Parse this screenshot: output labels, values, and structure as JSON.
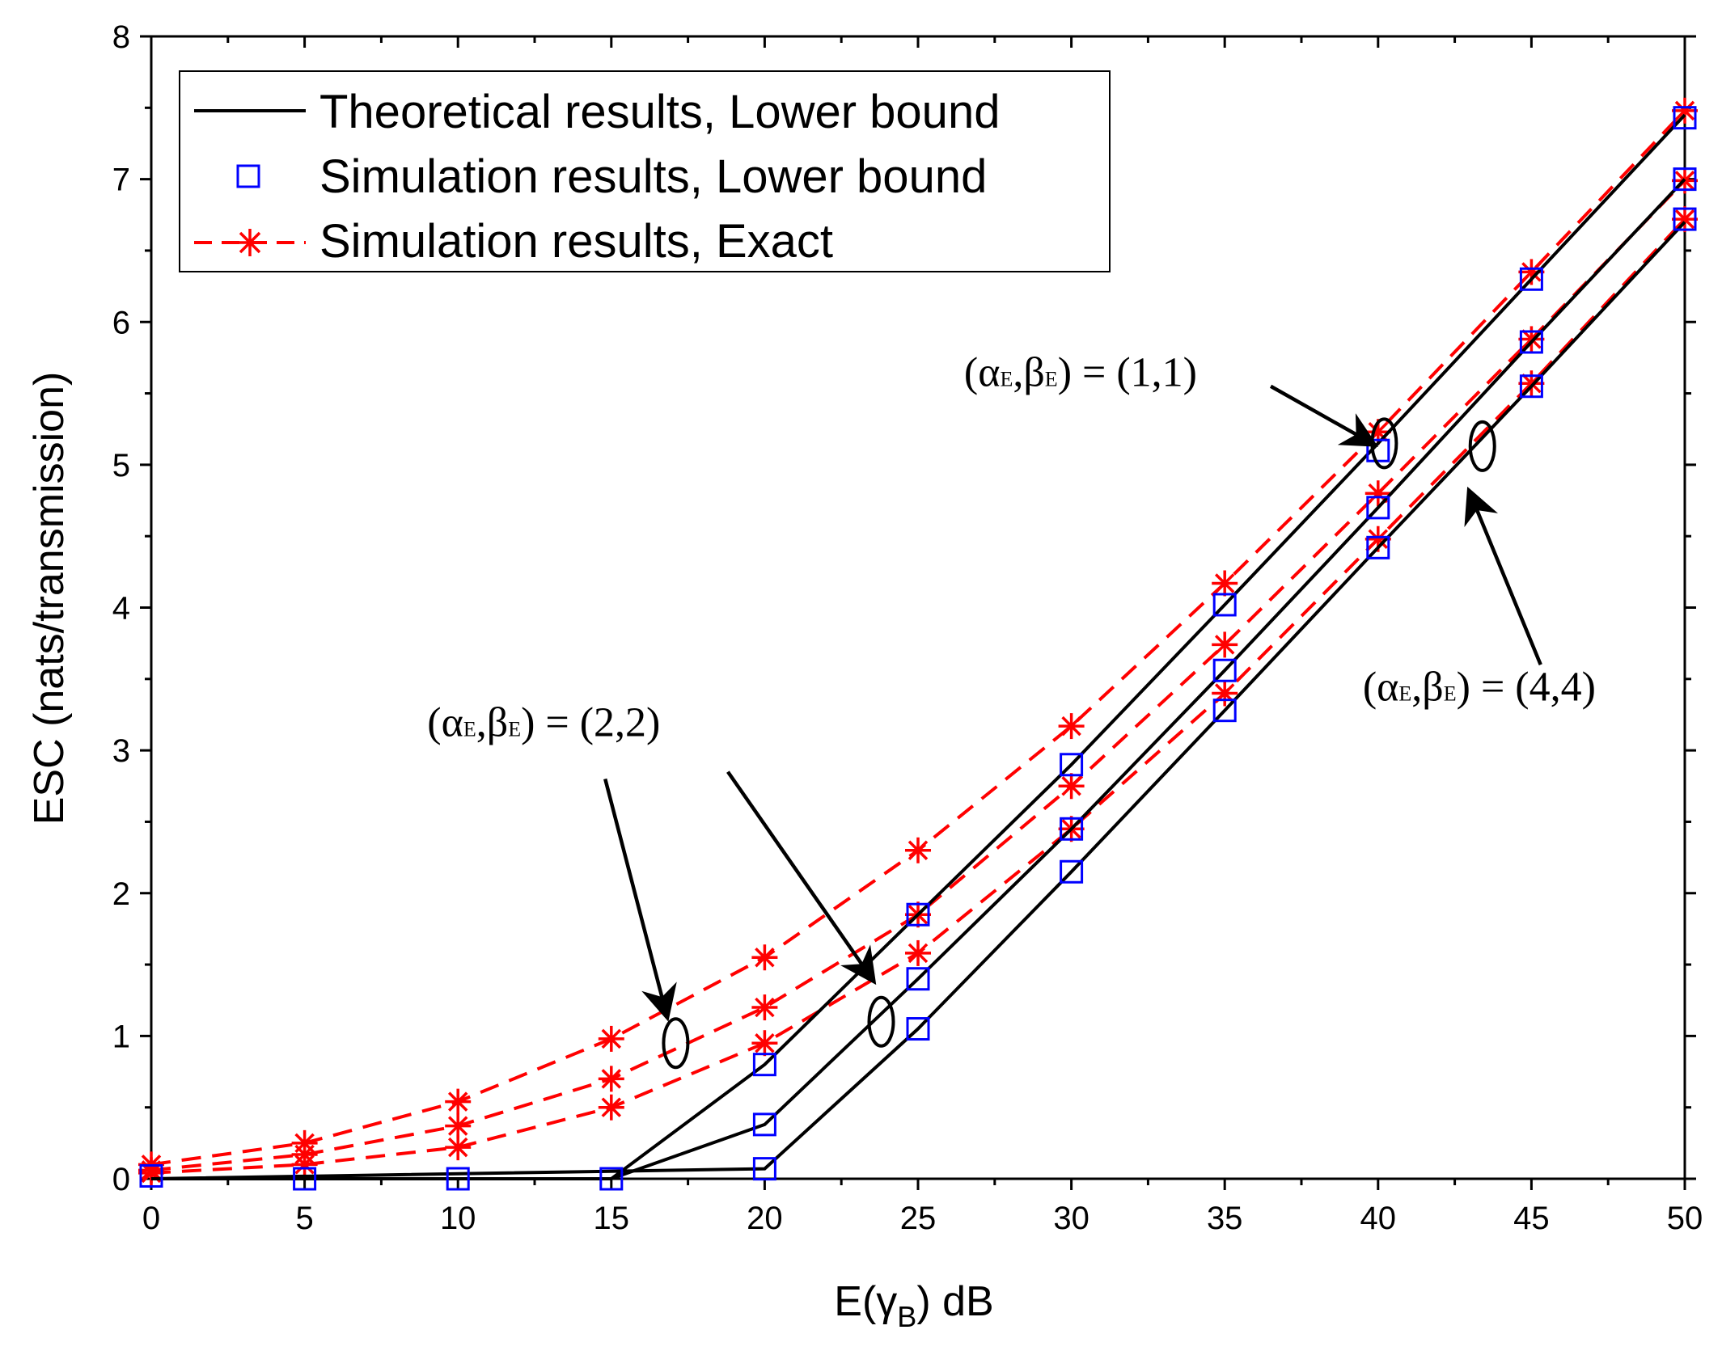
{
  "chart_data": {
    "type": "line",
    "title": "",
    "xlabel": "E(γB) dB",
    "xlabel_parts": {
      "prefix": "E(",
      "symbol": "γ",
      "sub": "B",
      "suffix": ") dB"
    },
    "ylabel": "ESC (nats/transmission)",
    "xlim": [
      0,
      50
    ],
    "ylim": [
      0,
      8
    ],
    "xticks": [
      0,
      5,
      10,
      15,
      20,
      25,
      30,
      35,
      40,
      45,
      50
    ],
    "yticks": [
      0,
      1,
      2,
      3,
      4,
      5,
      6,
      7,
      8
    ],
    "x_tick_labels": [
      "0",
      "5",
      "10",
      "15",
      "20",
      "25",
      "30",
      "35",
      "40",
      "45",
      "50"
    ],
    "y_tick_labels": [
      "0",
      "1",
      "2",
      "3",
      "4",
      "5",
      "6",
      "7",
      "8"
    ],
    "grid": false,
    "legend_position": "top-left",
    "legend": [
      {
        "label": "Theoretical results, Lower bound",
        "style": "solid-line",
        "color": "#000000"
      },
      {
        "label": "Simulation results, Lower bound",
        "style": "square-marker",
        "color": "#0000ff"
      },
      {
        "label": "Simulation results, Exact",
        "style": "dashed-star",
        "color": "#ff0000"
      }
    ],
    "x": [
      0,
      5,
      10,
      15,
      20,
      25,
      30,
      35,
      40,
      45,
      50
    ],
    "series": [
      {
        "name": "Theoretical results, Lower bound (1,1)",
        "kind": "theory",
        "color": "#000000",
        "x": [
          0,
          15,
          20,
          25,
          30,
          35,
          40,
          45,
          50
        ],
        "values": [
          0,
          0,
          0.8,
          1.85,
          2.9,
          4.02,
          5.15,
          6.3,
          7.45
        ]
      },
      {
        "name": "Theoretical results, Lower bound (2,2)",
        "kind": "theory",
        "color": "#000000",
        "x": [
          0,
          15,
          20,
          25,
          30,
          35,
          40,
          45,
          50
        ],
        "values": [
          0,
          0,
          0.38,
          1.4,
          2.45,
          3.56,
          4.7,
          5.86,
          7.0
        ]
      },
      {
        "name": "Theoretical results, Lower bound (4,4)",
        "kind": "theory",
        "color": "#000000",
        "x": [
          0,
          20,
          25,
          30,
          35,
          40,
          45,
          50
        ],
        "values": [
          0,
          0.07,
          1.05,
          2.15,
          3.28,
          4.42,
          5.55,
          6.7
        ]
      },
      {
        "name": "Simulation results, Lower bound (1,1)",
        "kind": "sim-lower",
        "color": "#0000ff",
        "x": [
          0,
          5,
          10,
          15,
          20,
          25,
          30,
          35,
          40,
          45,
          50
        ],
        "values": [
          0.02,
          0.0,
          0.0,
          0.0,
          0.8,
          1.85,
          2.9,
          4.02,
          5.1,
          6.3,
          7.43
        ]
      },
      {
        "name": "Simulation results, Lower bound (2,2)",
        "kind": "sim-lower",
        "color": "#0000ff",
        "x": [
          20,
          25,
          30,
          35,
          40,
          45,
          50
        ],
        "values": [
          0.38,
          1.4,
          2.45,
          3.56,
          4.7,
          5.86,
          7.0
        ]
      },
      {
        "name": "Simulation results, Lower bound (4,4)",
        "kind": "sim-lower",
        "color": "#0000ff",
        "x": [
          20,
          25,
          30,
          35,
          40,
          45,
          50
        ],
        "values": [
          0.07,
          1.05,
          2.15,
          3.28,
          4.42,
          5.55,
          6.72
        ]
      },
      {
        "name": "Simulation results, Exact (1,1)",
        "kind": "sim-exact",
        "color": "#ff0000",
        "x": [
          0,
          5,
          10,
          15,
          20,
          25,
          30,
          35,
          40,
          45,
          50
        ],
        "values": [
          0.1,
          0.25,
          0.54,
          0.98,
          1.55,
          2.3,
          3.17,
          4.17,
          5.23,
          6.35,
          7.48
        ]
      },
      {
        "name": "Simulation results, Exact (2,2)",
        "kind": "sim-exact",
        "color": "#ff0000",
        "x": [
          0,
          5,
          10,
          15,
          20,
          25,
          30,
          35,
          40,
          45,
          50
        ],
        "values": [
          0.06,
          0.17,
          0.37,
          0.7,
          1.2,
          1.85,
          2.75,
          3.74,
          4.8,
          5.88,
          6.99
        ]
      },
      {
        "name": "Simulation results, Exact (4,4)",
        "kind": "sim-exact",
        "color": "#ff0000",
        "x": [
          0,
          5,
          10,
          15,
          20,
          25,
          30,
          35,
          40,
          45,
          50
        ],
        "values": [
          0.04,
          0.1,
          0.22,
          0.5,
          0.95,
          1.58,
          2.45,
          3.4,
          4.48,
          5.57,
          6.72
        ]
      }
    ],
    "annotations": [
      {
        "id": "anno-1-1",
        "text_prefix": "(α",
        "sub1": "E",
        "mid": ",β",
        "sub2": "E",
        "text_suffix": ") = (1,1)",
        "text_anchor": [
          26.5,
          5.55
        ],
        "arrow_from": [
          36.5,
          5.55
        ],
        "arrow_to": [
          39.8,
          5.15
        ],
        "ellipse_center": [
          40.2,
          5.15
        ]
      },
      {
        "id": "anno-2-2",
        "text_prefix": "(α",
        "sub1": "E",
        "mid": ",β",
        "sub2": "E",
        "text_suffix": ") = (2,2)",
        "text_anchor": [
          9.0,
          3.1
        ],
        "arrow_from": [
          14.8,
          2.8
        ],
        "arrow_to": [
          16.8,
          1.15
        ],
        "arrow2_from": [
          18.8,
          2.85
        ],
        "arrow2_to": [
          23.5,
          1.4
        ],
        "ellipse_center": [
          17.1,
          0.95
        ],
        "ellipse2_center": [
          23.8,
          1.1
        ]
      },
      {
        "id": "anno-4-4",
        "text_prefix": "(α",
        "sub1": "E",
        "mid": ",β",
        "sub2": "E",
        "text_suffix": ") = (4,4)",
        "text_anchor": [
          39.5,
          3.35
        ],
        "arrow_from": [
          45.3,
          3.6
        ],
        "arrow_to": [
          43.0,
          4.8
        ],
        "ellipse_center": [
          43.4,
          5.13
        ]
      }
    ]
  }
}
